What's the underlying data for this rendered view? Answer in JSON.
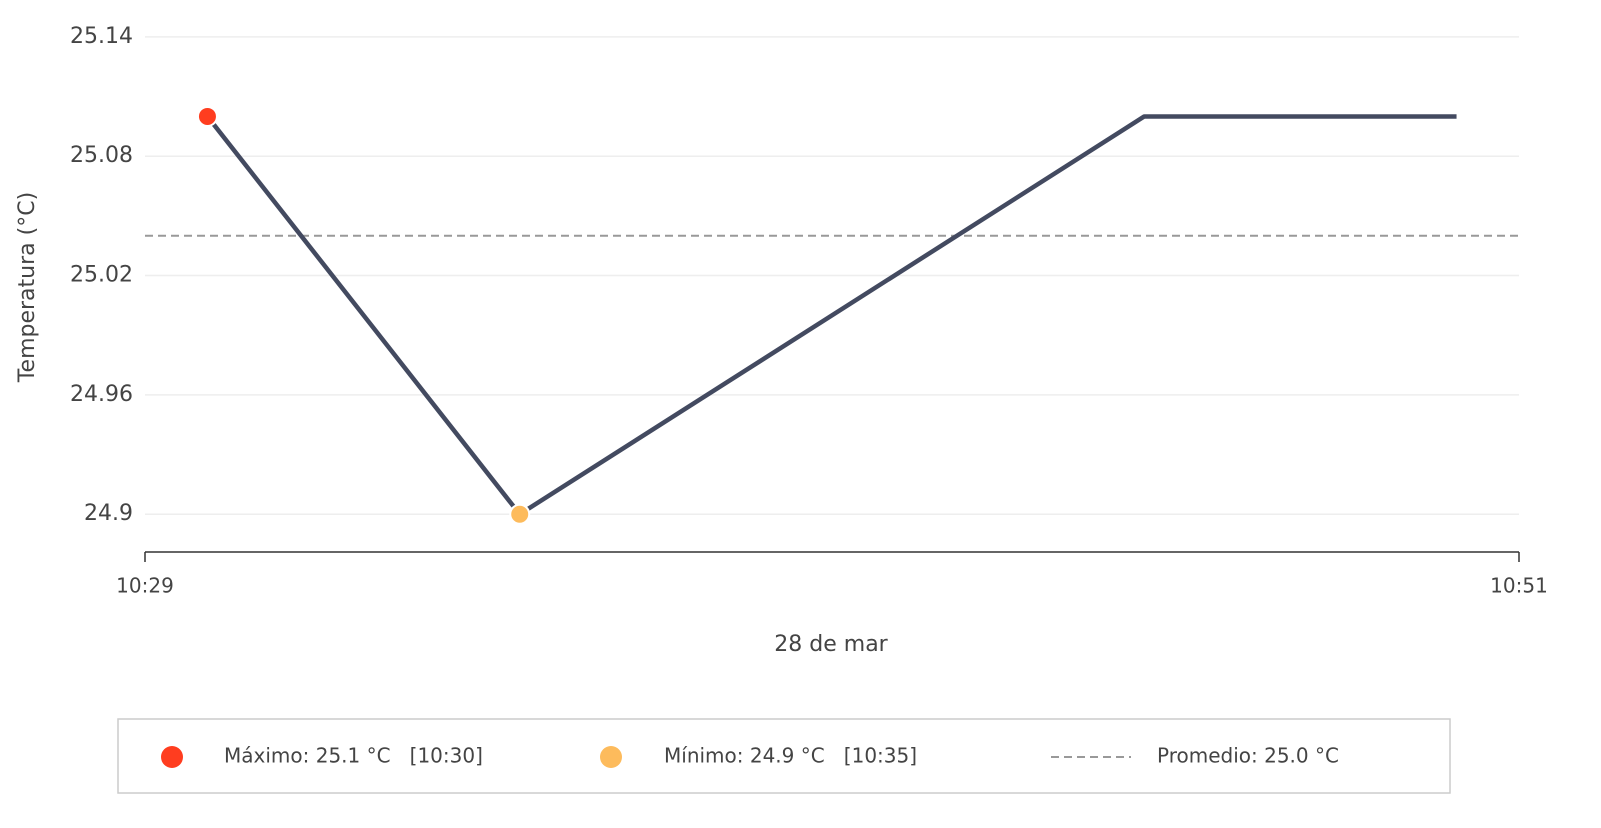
{
  "chart_data": {
    "type": "line",
    "y_label": "Temperatura (°C)",
    "x_label": "28 de mar",
    "x": [
      "10:30",
      "10:35",
      "10:45",
      "10:50"
    ],
    "series": [
      {
        "name": "Temperatura",
        "color": "#434a60",
        "values": [
          25.1,
          24.9,
          25.1,
          25.1
        ]
      }
    ],
    "xlim": [
      "10:29",
      "10:51"
    ],
    "xticks": [
      "10:29",
      "10:51"
    ],
    "ylim": [
      24.88,
      25.15
    ],
    "yticks": [
      24.9,
      24.96,
      25.02,
      25.08,
      25.14
    ],
    "grid": true,
    "average": 25.04,
    "max_color": "#ff3d1f",
    "min_color": "#fdbb5c",
    "average_color": "#999999",
    "legend": {
      "max": "Máximo: 25.1 °C   [10:30]",
      "min": "Mínimo: 24.9 °C   [10:35]",
      "average": "Promedio: 25.0 °C"
    }
  }
}
